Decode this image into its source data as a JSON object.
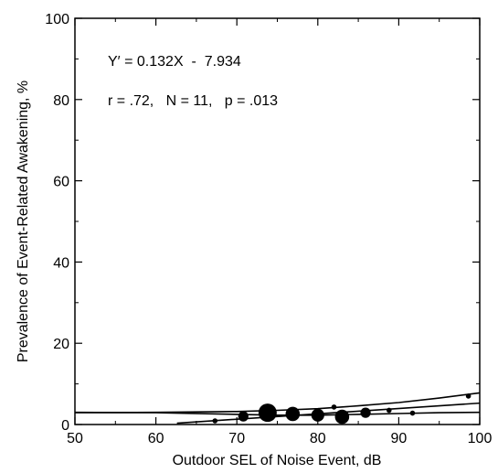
{
  "chart_data": {
    "type": "scatter",
    "xlabel": "Outdoor SEL of Noise Event, dB",
    "ylabel": "Prevalence of Event-Related Awakening, %",
    "xlim": [
      50,
      100
    ],
    "ylim": [
      0,
      100
    ],
    "x_ticks": [
      "50",
      "60",
      "70",
      "80",
      "90",
      "100"
    ],
    "y_ticks": [
      "0",
      "20",
      "40",
      "60",
      "80",
      "100"
    ],
    "annotations": [
      "Y′ = 0.132X  -  7.934",
      "r = .72,   N = 11,   p = .013"
    ],
    "regression": {
      "slope": 0.132,
      "intercept": -7.934,
      "x_range": [
        62.6,
        100
      ]
    },
    "confidence_band": {
      "upper": [
        [
          50,
          2.9
        ],
        [
          60,
          3.0
        ],
        [
          70,
          3.2
        ],
        [
          75,
          3.5
        ],
        [
          80,
          3.9
        ],
        [
          85,
          4.6
        ],
        [
          90,
          5.4
        ],
        [
          95,
          6.5
        ],
        [
          100,
          7.8
        ]
      ],
      "lower": [
        [
          50,
          3.0
        ],
        [
          60,
          2.9
        ],
        [
          70,
          2.5
        ],
        [
          75,
          2.3
        ],
        [
          80,
          2.3
        ],
        [
          85,
          2.5
        ],
        [
          90,
          2.7
        ],
        [
          95,
          2.9
        ],
        [
          100,
          3.0
        ]
      ]
    },
    "points": [
      {
        "x": 67.3,
        "y": 0.9,
        "weight": 1
      },
      {
        "x": 70.8,
        "y": 2.0,
        "weight": 3
      },
      {
        "x": 73.8,
        "y": 2.9,
        "weight": 6
      },
      {
        "x": 76.9,
        "y": 2.6,
        "weight": 4.5
      },
      {
        "x": 80.0,
        "y": 2.3,
        "weight": 4
      },
      {
        "x": 82.0,
        "y": 4.3,
        "weight": 1
      },
      {
        "x": 83.0,
        "y": 1.9,
        "weight": 4.5
      },
      {
        "x": 85.9,
        "y": 2.9,
        "weight": 3
      },
      {
        "x": 88.8,
        "y": 3.5,
        "weight": 1
      },
      {
        "x": 91.7,
        "y": 2.8,
        "weight": 1
      },
      {
        "x": 98.6,
        "y": 7.0,
        "weight": 1
      }
    ]
  }
}
